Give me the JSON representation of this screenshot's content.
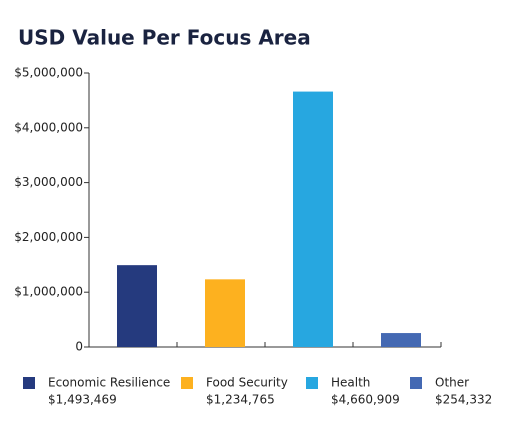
{
  "chart_data": {
    "type": "bar",
    "title": "USD Value Per Focus Area",
    "categories": [
      "Economic Resilience",
      "Food Security",
      "Health",
      "Other"
    ],
    "values": [
      1493469,
      1234765,
      4660909,
      254332
    ],
    "value_labels": [
      "$1,493,469",
      "$1,234,765",
      "$4,660,909",
      "$254,332"
    ],
    "colors": [
      "#253a7e",
      "#fdb11f",
      "#27a7e0",
      "#4469b3"
    ],
    "ylim": [
      0,
      5000000
    ],
    "yticks": [
      0,
      {
        "value": 1000000,
        "label": "$1,000,000"
      },
      {
        "value": 2000000,
        "label": "$2,000,000"
      },
      {
        "value": 3000000,
        "label": "$3,000,000"
      },
      {
        "value": 4000000,
        "label": "$4,000,000"
      },
      {
        "value": 5000000,
        "label": "$5,000,000"
      }
    ]
  }
}
